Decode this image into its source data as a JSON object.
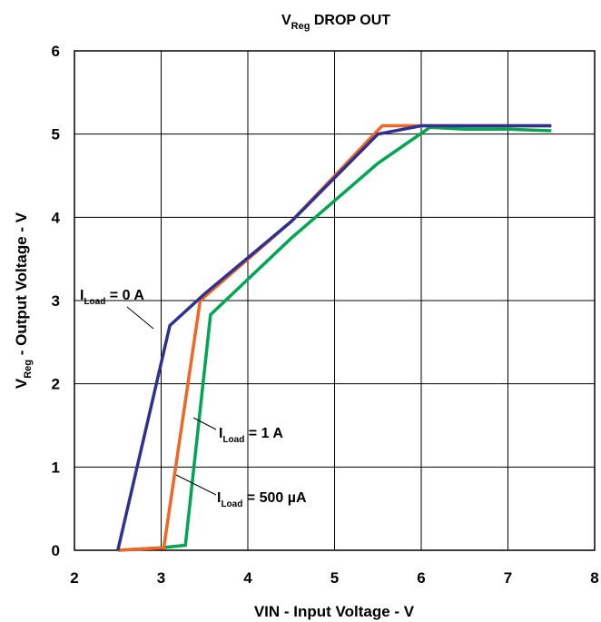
{
  "chart_data": {
    "type": "line",
    "title": {
      "main": "V",
      "sub": "Reg",
      "rest": " DROP OUT"
    },
    "xlabel": "VIN - Input Voltage - V",
    "ylabel": {
      "main": "V",
      "sub": "Reg",
      "rest": " - Output Voltage - V"
    },
    "xlim": [
      2,
      8
    ],
    "ylim": [
      0,
      6
    ],
    "xticks": [
      2,
      3,
      4,
      5,
      6,
      7,
      8
    ],
    "yticks": [
      0,
      1,
      2,
      3,
      4,
      5,
      6
    ],
    "grid": true,
    "series": [
      {
        "name": "0 A",
        "color": "#2e3192",
        "x": [
          2.5,
          3.1,
          3.5,
          4.5,
          5.5,
          6.0,
          7.5
        ],
        "y": [
          0.0,
          2.7,
          3.08,
          3.95,
          5.0,
          5.1,
          5.1
        ]
      },
      {
        "name": "1 A",
        "color": "#f26522",
        "x": [
          2.5,
          3.03,
          3.45,
          4.5,
          5.55,
          6.05,
          7.5
        ],
        "y": [
          0.0,
          0.03,
          3.0,
          3.95,
          5.1,
          5.1,
          5.1
        ]
      },
      {
        "name": "500 µA",
        "color": "#00a651",
        "x": [
          2.5,
          3.0,
          3.28,
          3.57,
          4.5,
          5.5,
          6.1,
          6.5,
          7.0,
          7.5
        ],
        "y": [
          0.0,
          0.03,
          0.06,
          2.83,
          3.75,
          4.65,
          5.08,
          5.06,
          5.06,
          5.04
        ]
      }
    ],
    "annotations": [
      {
        "label_main": "I",
        "label_sub": "Load",
        "label_rest": " = 0 A",
        "series": "0 A"
      },
      {
        "label_main": "I",
        "label_sub": "Load",
        "label_rest": " = 1 A",
        "series": "1 A"
      },
      {
        "label_main": "I",
        "label_sub": "Load",
        "label_rest": " = 500 µA",
        "series": "500 µA"
      }
    ]
  }
}
